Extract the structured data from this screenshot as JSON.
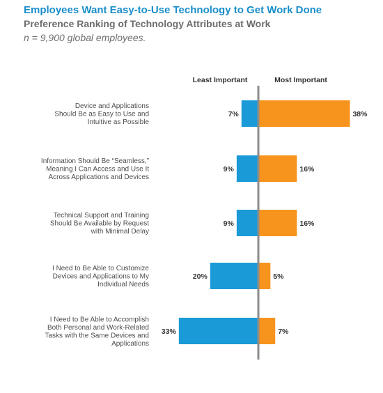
{
  "header": {
    "title": "Employees Want Easy-to-Use Technology to Get Work Done",
    "subtitle": "Preference Ranking of Technology Attributes at Work",
    "sample": "n = 9,900 global employees."
  },
  "colors": {
    "least": "#1a9ad6",
    "most": "#f7941d",
    "axis": "#8c8c8c",
    "label": "#4d4d4d",
    "title": "#1a8fc9",
    "subtitle": "#6d6d6d"
  },
  "chart_data": {
    "type": "bar",
    "orientation": "horizontal-diverging",
    "title": "Employees Want Easy-to-Use Technology to Get Work Done",
    "subtitle": "Preference Ranking of Technology Attributes at Work",
    "xlabel": "",
    "ylabel": "",
    "unit": "%",
    "legend_placement": "top",
    "grid": false,
    "categories": [
      [
        "Device and Applications",
        "Should Be as Easy to Use and",
        "Intuitive as Possible"
      ],
      [
        "Information Should Be “Seamless,”",
        "Meaning I Can Access and Use It",
        "Across Applications and Devices"
      ],
      [
        "Technical Support and Training",
        "Should Be Available by Request",
        "with Minimal Delay"
      ],
      [
        "I Need to Be Able to Customize",
        "Devices and Applications to My",
        "Individual Needs"
      ],
      [
        "I Need to Be Able to Accomplish",
        "Both Personal and Work-Related",
        "Tasks with the Same Devices and",
        "Applications"
      ]
    ],
    "series": [
      {
        "name": "Least Important",
        "values": [
          7,
          9,
          9,
          20,
          33
        ],
        "labels": [
          "7%",
          "9%",
          "9%",
          "20%",
          "33%"
        ]
      },
      {
        "name": "Most Important",
        "values": [
          38,
          16,
          16,
          5,
          7
        ],
        "labels": [
          "38%",
          "16%",
          "16%",
          "5%",
          "7%"
        ]
      }
    ]
  }
}
